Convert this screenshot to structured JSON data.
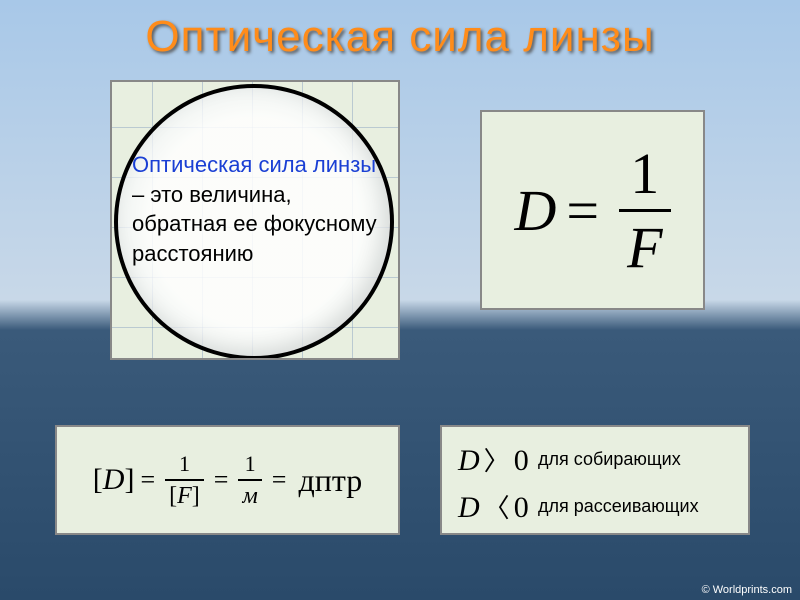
{
  "title": "Оптическая сила линзы",
  "lens": {
    "highlight": "Оптическая сила линзы",
    "rest": " – это величина, обратная ее фокусному расстоянию"
  },
  "formula": {
    "lhs": "D",
    "eq": "=",
    "num": "1",
    "den": "F"
  },
  "unit": {
    "D": "D",
    "num1": "1",
    "den1": "F",
    "num2": "1",
    "den2": "м",
    "result": "дптр"
  },
  "cond": {
    "row1_sym_D": "D",
    "row1_sym_rel": "〉",
    "row1_sym_zero": "0",
    "row1_label": "для собирающих",
    "row2_sym_D": "D",
    "row2_sym_rel": "〈",
    "row2_sym_zero": "0",
    "row2_label": "для рассеивающих"
  },
  "copyright": "© Worldprints.com",
  "colors": {
    "title_color": "#ff8c1a",
    "card_bg": "#e8efe0",
    "highlight_color": "#1a3fd4",
    "sky_top": "#a8c8e8",
    "horizon": "#2a4a6a"
  },
  "typography": {
    "title_fontsize": 44,
    "lens_text_fontsize": 22,
    "formula_fontsize": 58,
    "unit_fontsize": 26,
    "cond_sym_fontsize": 30,
    "cond_label_fontsize": 18
  }
}
